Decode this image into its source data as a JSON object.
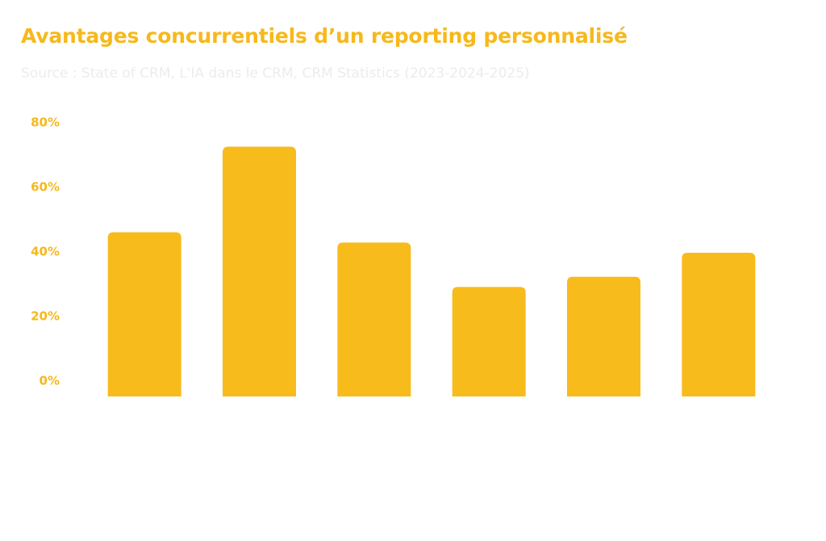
{
  "header": {
    "title": "Avantages concurrentiels d’un reporting personnalisé",
    "subtitle": "Source : State of CRM, L'IA dans le CRM, CRM Statistics (2023-2024-2025)"
  },
  "chart_data": {
    "type": "bar",
    "title": "Avantages concurrentiels d’un reporting personnalisé",
    "subtitle": "Source : State of CRM, L'IA dans le CRM, CRM Statistics (2023-2024-2025)",
    "categories": [
      "",
      "",
      "",
      "",
      "",
      ""
    ],
    "values": [
      48,
      73,
      45,
      32,
      35,
      42
    ],
    "ylim": [
      0,
      80
    ],
    "yticks": [
      {
        "value": 80,
        "label": "80%"
      },
      {
        "value": 60,
        "label": "60%"
      },
      {
        "value": 40,
        "label": "40%"
      },
      {
        "value": 20,
        "label": "20%"
      },
      {
        "value": 0,
        "label": "0%"
      }
    ],
    "grid": false,
    "legend": "none",
    "bar_color": "#f7bb1c",
    "accent_color": "#f7b81b"
  }
}
